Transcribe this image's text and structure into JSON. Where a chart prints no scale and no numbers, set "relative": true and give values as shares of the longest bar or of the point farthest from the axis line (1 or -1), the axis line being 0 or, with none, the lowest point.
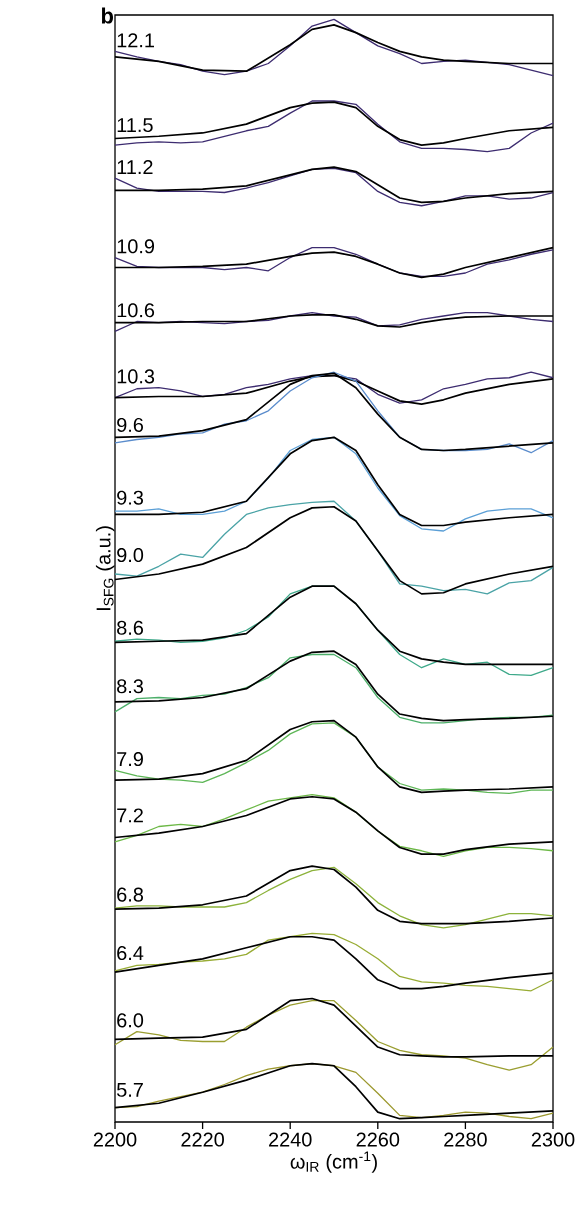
{
  "chart_data": {
    "type": "line",
    "relative": true,
    "xlabel": "ω$_{IR}$ (cm$^{-1}$)",
    "ylabel": "I$_{SFG}$ (a.u.)",
    "annotations": [
      "b"
    ],
    "xlim": [
      2200,
      2300
    ],
    "xticks": [
      2200,
      2220,
      2240,
      2260,
      2280,
      2300
    ],
    "marker": "none",
    "line_style": "solid",
    "series": [
      {
        "name": "12.1",
        "color": "#3d2c70",
        "x": [
          2200,
          2205,
          2210,
          2215,
          2220,
          2225,
          2230,
          2235,
          2240,
          2245,
          2250,
          2255,
          2260,
          2265,
          2270,
          2275,
          2280,
          2285,
          2290,
          2295,
          2300
        ],
        "values": [
          0.971,
          0.966,
          0.962,
          0.959,
          0.953,
          0.95,
          0.953,
          0.96,
          0.976,
          0.994,
          1.0,
          0.988,
          0.976,
          0.969,
          0.96,
          0.962,
          0.963,
          0.961,
          0.959,
          0.954,
          0.949
        ]
      },
      {
        "color": "#000000",
        "x": [
          2200,
          2210,
          2220,
          2230,
          2240,
          2245,
          2250,
          2255,
          2260,
          2265,
          2270,
          2275,
          2280,
          2290,
          2300
        ],
        "values": [
          0.966,
          0.962,
          0.954,
          0.953,
          0.977,
          0.991,
          0.995,
          0.988,
          0.979,
          0.971,
          0.966,
          0.963,
          0.962,
          0.96,
          0.96
        ]
      },
      {
        "name": "11.5",
        "color": "#3d2c70",
        "x": [
          2200,
          2205,
          2210,
          2215,
          2220,
          2225,
          2230,
          2235,
          2240,
          2245,
          2250,
          2255,
          2260,
          2265,
          2270,
          2275,
          2280,
          2285,
          2290,
          2295,
          2300
        ],
        "values": [
          0.886,
          0.888,
          0.889,
          0.888,
          0.889,
          0.894,
          0.899,
          0.903,
          0.915,
          0.926,
          0.926,
          0.923,
          0.905,
          0.889,
          0.883,
          0.883,
          0.882,
          0.88,
          0.883,
          0.897,
          0.906
        ]
      },
      {
        "color": "#000000",
        "x": [
          2200,
          2210,
          2220,
          2230,
          2240,
          2245,
          2250,
          2255,
          2260,
          2265,
          2270,
          2275,
          2280,
          2290,
          2300
        ],
        "values": [
          0.892,
          0.894,
          0.897,
          0.905,
          0.92,
          0.924,
          0.925,
          0.92,
          0.903,
          0.891,
          0.886,
          0.888,
          0.892,
          0.899,
          0.902
        ]
      },
      {
        "name": "11.2",
        "color": "#3d2c70",
        "x": [
          2200,
          2205,
          2210,
          2215,
          2220,
          2225,
          2230,
          2235,
          2240,
          2245,
          2250,
          2255,
          2260,
          2265,
          2270,
          2275,
          2280,
          2285,
          2290,
          2295,
          2300
        ],
        "values": [
          0.856,
          0.847,
          0.844,
          0.844,
          0.844,
          0.843,
          0.847,
          0.852,
          0.858,
          0.864,
          0.865,
          0.861,
          0.844,
          0.834,
          0.831,
          0.835,
          0.84,
          0.84,
          0.837,
          0.838,
          0.843
        ]
      },
      {
        "color": "#000000",
        "x": [
          2200,
          2210,
          2220,
          2230,
          2240,
          2245,
          2250,
          2255,
          2260,
          2265,
          2270,
          2275,
          2280,
          2290,
          2300
        ],
        "values": [
          0.845,
          0.845,
          0.846,
          0.849,
          0.859,
          0.864,
          0.866,
          0.862,
          0.85,
          0.838,
          0.834,
          0.835,
          0.838,
          0.842,
          0.844
        ]
      },
      {
        "name": "10.9",
        "color": "#3d2c70",
        "x": [
          2200,
          2205,
          2210,
          2215,
          2220,
          2225,
          2230,
          2235,
          2240,
          2245,
          2250,
          2255,
          2260,
          2265,
          2270,
          2275,
          2280,
          2285,
          2290,
          2295,
          2300
        ],
        "values": [
          0.784,
          0.776,
          0.775,
          0.775,
          0.775,
          0.773,
          0.775,
          0.772,
          0.784,
          0.793,
          0.793,
          0.787,
          0.778,
          0.77,
          0.767,
          0.767,
          0.77,
          0.778,
          0.782,
          0.787,
          0.791
        ]
      },
      {
        "color": "#000000",
        "x": [
          2200,
          2210,
          2220,
          2230,
          2240,
          2245,
          2250,
          2255,
          2260,
          2265,
          2270,
          2275,
          2280,
          2290,
          2300
        ],
        "values": [
          0.775,
          0.775,
          0.776,
          0.778,
          0.785,
          0.788,
          0.789,
          0.785,
          0.778,
          0.77,
          0.766,
          0.769,
          0.775,
          0.784,
          0.793
        ]
      },
      {
        "name": "10.6",
        "color": "#3d2c70",
        "x": [
          2200,
          2205,
          2210,
          2215,
          2220,
          2225,
          2230,
          2235,
          2240,
          2245,
          2250,
          2255,
          2260,
          2265,
          2270,
          2275,
          2280,
          2285,
          2290,
          2295,
          2300
        ],
        "values": [
          0.717,
          0.726,
          0.725,
          0.726,
          0.725,
          0.724,
          0.726,
          0.727,
          0.731,
          0.734,
          0.731,
          0.73,
          0.722,
          0.723,
          0.728,
          0.731,
          0.734,
          0.734,
          0.731,
          0.728,
          0.726
        ]
      },
      {
        "color": "#000000",
        "x": [
          2200,
          2210,
          2220,
          2230,
          2240,
          2245,
          2250,
          2255,
          2260,
          2265,
          2270,
          2275,
          2280,
          2290,
          2300
        ],
        "values": [
          0.725,
          0.725,
          0.726,
          0.726,
          0.731,
          0.732,
          0.732,
          0.728,
          0.722,
          0.721,
          0.725,
          0.728,
          0.73,
          0.731,
          0.731
        ]
      },
      {
        "name": "10.3",
        "color": "#3d2c70",
        "x": [
          2200,
          2205,
          2210,
          2215,
          2220,
          2225,
          2230,
          2235,
          2240,
          2245,
          2250,
          2255,
          2260,
          2265,
          2270,
          2275,
          2280,
          2285,
          2290,
          2295,
          2300
        ],
        "values": [
          0.657,
          0.665,
          0.666,
          0.663,
          0.658,
          0.66,
          0.666,
          0.669,
          0.674,
          0.677,
          0.677,
          0.674,
          0.66,
          0.652,
          0.655,
          0.665,
          0.669,
          0.674,
          0.675,
          0.68,
          0.675
        ]
      },
      {
        "color": "#000000",
        "x": [
          2200,
          2210,
          2220,
          2230,
          2240,
          2245,
          2250,
          2255,
          2260,
          2265,
          2270,
          2275,
          2280,
          2290,
          2300
        ],
        "values": [
          0.657,
          0.658,
          0.658,
          0.661,
          0.672,
          0.676,
          0.677,
          0.672,
          0.663,
          0.654,
          0.651,
          0.655,
          0.661,
          0.669,
          0.674
        ]
      },
      {
        "name": "9.6",
        "color": "#5a8ccc",
        "x": [
          2200,
          2205,
          2210,
          2215,
          2220,
          2225,
          2230,
          2235,
          2240,
          2245,
          2250,
          2255,
          2260,
          2265,
          2270,
          2275,
          2280,
          2285,
          2290,
          2295,
          2300
        ],
        "values": [
          0.616,
          0.619,
          0.621,
          0.624,
          0.625,
          0.633,
          0.636,
          0.645,
          0.663,
          0.675,
          0.68,
          0.672,
          0.645,
          0.621,
          0.61,
          0.609,
          0.609,
          0.61,
          0.615,
          0.607,
          0.618
        ]
      },
      {
        "color": "#000000",
        "x": [
          2200,
          2210,
          2220,
          2230,
          2240,
          2245,
          2250,
          2255,
          2260,
          2265,
          2270,
          2275,
          2280,
          2290,
          2300
        ],
        "values": [
          0.621,
          0.622,
          0.627,
          0.637,
          0.669,
          0.677,
          0.679,
          0.666,
          0.642,
          0.621,
          0.61,
          0.609,
          0.61,
          0.613,
          0.616
        ]
      },
      {
        "name": "9.3",
        "color": "#5b9fd6",
        "x": [
          2200,
          2205,
          2210,
          2215,
          2220,
          2225,
          2230,
          2235,
          2240,
          2245,
          2250,
          2255,
          2260,
          2265,
          2270,
          2275,
          2280,
          2285,
          2290,
          2295,
          2300
        ],
        "values": [
          0.554,
          0.554,
          0.556,
          0.551,
          0.551,
          0.554,
          0.563,
          0.584,
          0.609,
          0.619,
          0.621,
          0.606,
          0.575,
          0.55,
          0.538,
          0.536,
          0.547,
          0.554,
          0.556,
          0.556,
          0.548
        ]
      },
      {
        "color": "#000000",
        "x": [
          2200,
          2210,
          2220,
          2230,
          2240,
          2245,
          2250,
          2255,
          2260,
          2265,
          2270,
          2275,
          2280,
          2290,
          2300
        ],
        "values": [
          0.551,
          0.551,
          0.553,
          0.563,
          0.606,
          0.618,
          0.621,
          0.609,
          0.578,
          0.551,
          0.541,
          0.541,
          0.544,
          0.548,
          0.551
        ]
      },
      {
        "name": "9.0",
        "color": "#4aa3a6",
        "x": [
          2200,
          2205,
          2210,
          2215,
          2220,
          2225,
          2230,
          2235,
          2240,
          2245,
          2250,
          2255,
          2260,
          2265,
          2270,
          2275,
          2280,
          2285,
          2290,
          2295,
          2300
        ],
        "values": [
          0.497,
          0.495,
          0.504,
          0.515,
          0.512,
          0.533,
          0.551,
          0.557,
          0.56,
          0.562,
          0.563,
          0.545,
          0.518,
          0.488,
          0.486,
          0.482,
          0.483,
          0.479,
          0.489,
          0.491,
          0.503
        ]
      },
      {
        "color": "#000000",
        "x": [
          2200,
          2210,
          2220,
          2230,
          2240,
          2245,
          2250,
          2255,
          2260,
          2265,
          2270,
          2275,
          2280,
          2290,
          2300
        ],
        "values": [
          0.492,
          0.497,
          0.506,
          0.521,
          0.548,
          0.557,
          0.558,
          0.545,
          0.518,
          0.491,
          0.479,
          0.48,
          0.488,
          0.497,
          0.504
        ]
      },
      {
        "name": "8.6",
        "color": "#3ea98a",
        "x": [
          2200,
          2205,
          2210,
          2215,
          2220,
          2225,
          2230,
          2235,
          2240,
          2245,
          2250,
          2255,
          2260,
          2265,
          2270,
          2275,
          2280,
          2285,
          2290,
          2295,
          2300
        ],
        "values": [
          0.436,
          0.438,
          0.437,
          0.435,
          0.436,
          0.439,
          0.446,
          0.458,
          0.479,
          0.486,
          0.486,
          0.47,
          0.446,
          0.424,
          0.412,
          0.42,
          0.415,
          0.417,
          0.406,
          0.405,
          0.412
        ]
      },
      {
        "color": "#000000",
        "x": [
          2200,
          2210,
          2220,
          2230,
          2240,
          2245,
          2250,
          2255,
          2260,
          2265,
          2270,
          2275,
          2280,
          2290,
          2300
        ],
        "values": [
          0.435,
          0.436,
          0.437,
          0.443,
          0.476,
          0.486,
          0.486,
          0.47,
          0.446,
          0.427,
          0.42,
          0.417,
          0.415,
          0.415,
          0.415
        ]
      },
      {
        "name": "8.3",
        "color": "#4caf6a",
        "x": [
          2200,
          2205,
          2210,
          2215,
          2220,
          2225,
          2230,
          2235,
          2240,
          2245,
          2250,
          2255,
          2260,
          2265,
          2270,
          2275,
          2280,
          2285,
          2290,
          2295,
          2300
        ],
        "values": [
          0.372,
          0.384,
          0.385,
          0.384,
          0.387,
          0.388,
          0.394,
          0.403,
          0.421,
          0.424,
          0.424,
          0.412,
          0.385,
          0.367,
          0.362,
          0.362,
          0.364,
          0.366,
          0.367,
          0.367,
          0.369
        ]
      },
      {
        "color": "#000000",
        "x": [
          2200,
          2210,
          2220,
          2230,
          2240,
          2245,
          2250,
          2255,
          2260,
          2265,
          2270,
          2275,
          2280,
          2290,
          2300
        ],
        "values": [
          0.381,
          0.382,
          0.385,
          0.393,
          0.418,
          0.426,
          0.427,
          0.415,
          0.388,
          0.37,
          0.366,
          0.364,
          0.365,
          0.366,
          0.368
        ]
      },
      {
        "name": "7.9",
        "color": "#5db656",
        "x": [
          2200,
          2205,
          2210,
          2215,
          2220,
          2225,
          2230,
          2235,
          2240,
          2245,
          2250,
          2255,
          2260,
          2265,
          2270,
          2275,
          2280,
          2285,
          2290,
          2295,
          2300
        ],
        "values": [
          0.319,
          0.314,
          0.311,
          0.31,
          0.308,
          0.316,
          0.326,
          0.337,
          0.352,
          0.361,
          0.362,
          0.349,
          0.322,
          0.307,
          0.301,
          0.302,
          0.301,
          0.299,
          0.298,
          0.301,
          0.301
        ]
      },
      {
        "color": "#000000",
        "x": [
          2200,
          2210,
          2220,
          2230,
          2240,
          2245,
          2250,
          2255,
          2260,
          2265,
          2270,
          2275,
          2280,
          2290,
          2300
        ],
        "values": [
          0.31,
          0.311,
          0.316,
          0.328,
          0.356,
          0.363,
          0.364,
          0.349,
          0.322,
          0.304,
          0.299,
          0.3,
          0.301,
          0.302,
          0.304
        ]
      },
      {
        "name": "7.2",
        "color": "#6cb846",
        "x": [
          2200,
          2205,
          2210,
          2215,
          2220,
          2225,
          2230,
          2235,
          2240,
          2245,
          2250,
          2255,
          2260,
          2265,
          2270,
          2275,
          2280,
          2285,
          2290,
          2295,
          2300
        ],
        "values": [
          0.254,
          0.26,
          0.268,
          0.27,
          0.268,
          0.275,
          0.283,
          0.291,
          0.294,
          0.297,
          0.294,
          0.281,
          0.264,
          0.25,
          0.246,
          0.241,
          0.246,
          0.249,
          0.249,
          0.248,
          0.246
        ]
      },
      {
        "color": "#000000",
        "x": [
          2200,
          2210,
          2220,
          2230,
          2240,
          2245,
          2250,
          2255,
          2260,
          2265,
          2270,
          2275,
          2280,
          2290,
          2300
        ],
        "values": [
          0.258,
          0.262,
          0.268,
          0.278,
          0.293,
          0.295,
          0.293,
          0.281,
          0.264,
          0.249,
          0.243,
          0.243,
          0.247,
          0.252,
          0.254
        ]
      },
      {
        "name": "6.8",
        "color": "#8cb23a",
        "x": [
          2200,
          2205,
          2210,
          2215,
          2220,
          2225,
          2230,
          2235,
          2240,
          2245,
          2250,
          2255,
          2260,
          2265,
          2270,
          2275,
          2280,
          2285,
          2290,
          2295,
          2300
        ],
        "values": [
          0.194,
          0.196,
          0.196,
          0.195,
          0.195,
          0.195,
          0.199,
          0.21,
          0.22,
          0.228,
          0.231,
          0.216,
          0.199,
          0.187,
          0.179,
          0.176,
          0.179,
          0.184,
          0.189,
          0.189,
          0.187
        ]
      },
      {
        "color": "#000000",
        "x": [
          2200,
          2210,
          2220,
          2230,
          2240,
          2245,
          2250,
          2255,
          2260,
          2265,
          2270,
          2275,
          2280,
          2290,
          2300
        ],
        "values": [
          0.193,
          0.194,
          0.197,
          0.205,
          0.228,
          0.232,
          0.229,
          0.213,
          0.192,
          0.182,
          0.18,
          0.18,
          0.18,
          0.182,
          0.185
        ]
      },
      {
        "name": "6.4",
        "color": "#98ac34",
        "x": [
          2200,
          2205,
          2210,
          2215,
          2220,
          2225,
          2230,
          2235,
          2240,
          2245,
          2250,
          2255,
          2260,
          2265,
          2270,
          2275,
          2280,
          2285,
          2290,
          2295,
          2300
        ],
        "values": [
          0.137,
          0.142,
          0.143,
          0.145,
          0.146,
          0.148,
          0.152,
          0.165,
          0.168,
          0.171,
          0.17,
          0.161,
          0.148,
          0.132,
          0.127,
          0.126,
          0.124,
          0.123,
          0.121,
          0.119,
          0.129
        ]
      },
      {
        "color": "#000000",
        "x": [
          2200,
          2210,
          2220,
          2230,
          2240,
          2245,
          2250,
          2255,
          2260,
          2265,
          2270,
          2275,
          2280,
          2290,
          2300
        ],
        "values": [
          0.136,
          0.142,
          0.148,
          0.158,
          0.168,
          0.168,
          0.165,
          0.148,
          0.129,
          0.121,
          0.121,
          0.123,
          0.126,
          0.131,
          0.135
        ]
      },
      {
        "name": "6.0",
        "color": "#9a9e30",
        "x": [
          2200,
          2205,
          2210,
          2215,
          2220,
          2225,
          2230,
          2235,
          2240,
          2245,
          2250,
          2255,
          2260,
          2265,
          2270,
          2275,
          2280,
          2285,
          2290,
          2295,
          2300
        ],
        "values": [
          0.07,
          0.082,
          0.079,
          0.074,
          0.073,
          0.073,
          0.086,
          0.097,
          0.106,
          0.11,
          0.11,
          0.092,
          0.073,
          0.065,
          0.061,
          0.06,
          0.058,
          0.052,
          0.047,
          0.052,
          0.068
        ]
      },
      {
        "color": "#000000",
        "x": [
          2200,
          2210,
          2220,
          2230,
          2240,
          2245,
          2250,
          2255,
          2260,
          2265,
          2270,
          2275,
          2280,
          2290,
          2300
        ],
        "values": [
          0.075,
          0.076,
          0.077,
          0.084,
          0.11,
          0.112,
          0.106,
          0.087,
          0.068,
          0.061,
          0.06,
          0.059,
          0.059,
          0.06,
          0.06
        ]
      },
      {
        "name": "5.7",
        "color": "#9c982e",
        "x": [
          2200,
          2205,
          2210,
          2215,
          2220,
          2225,
          2230,
          2235,
          2240,
          2245,
          2250,
          2255,
          2260,
          2265,
          2270,
          2275,
          2280,
          2285,
          2290,
          2295,
          2300
        ],
        "values": [
          0.013,
          0.014,
          0.019,
          0.023,
          0.027,
          0.034,
          0.042,
          0.048,
          0.051,
          0.053,
          0.051,
          0.045,
          0.026,
          0.006,
          0.004,
          0.006,
          0.009,
          0.008,
          0.005,
          0.003,
          0.008
        ]
      },
      {
        "color": "#000000",
        "x": [
          2200,
          2210,
          2220,
          2230,
          2240,
          2245,
          2250,
          2255,
          2260,
          2265,
          2270,
          2275,
          2280,
          2290,
          2300
        ],
        "values": [
          0.013,
          0.017,
          0.027,
          0.038,
          0.051,
          0.053,
          0.051,
          0.032,
          0.009,
          0.003,
          0.004,
          0.005,
          0.006,
          0.008,
          0.01
        ]
      }
    ]
  }
}
